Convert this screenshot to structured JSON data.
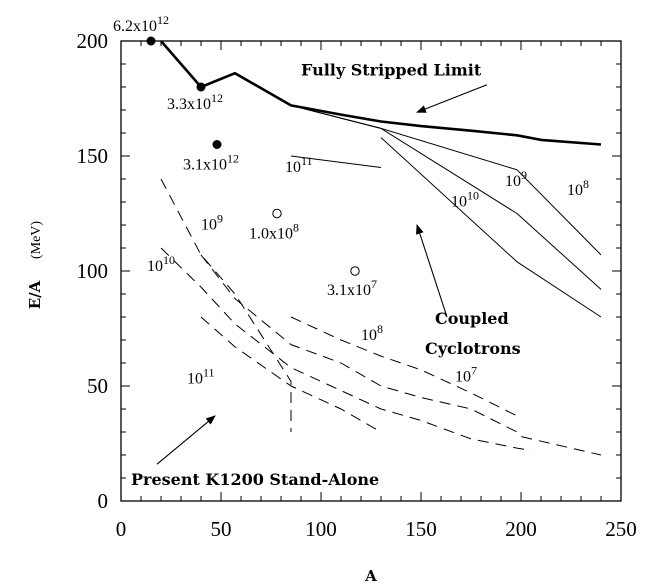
{
  "chart_data": {
    "type": "line",
    "xlabel": "A",
    "ylabel": "E/A",
    "yunit": "(MeV)",
    "xlim": [
      0,
      250
    ],
    "ylim": [
      0,
      200
    ],
    "xticks": [
      0,
      50,
      100,
      150,
      200,
      250
    ],
    "yticks": [
      0,
      50,
      100,
      150,
      200
    ],
    "grid": false,
    "series": [
      {
        "name": "Fully Stripped Limit",
        "style": "thick-solid",
        "points": [
          [
            20,
            200
          ],
          [
            40,
            180
          ],
          [
            57,
            186
          ],
          [
            85,
            172
          ],
          [
            110,
            168
          ],
          [
            130,
            165
          ],
          [
            150,
            163
          ],
          [
            175,
            161
          ],
          [
            198,
            159
          ],
          [
            210,
            157
          ],
          [
            240,
            155
          ]
        ]
      },
      {
        "name": "",
        "style": "solid",
        "points": [
          [
            85,
            172
          ],
          [
            130,
            162
          ],
          [
            198,
            144
          ],
          [
            240,
            107
          ]
        ]
      },
      {
        "name": "",
        "style": "solid",
        "points": [
          [
            85,
            172
          ],
          [
            130,
            162
          ],
          [
            198,
            125
          ],
          [
            240,
            92
          ]
        ]
      },
      {
        "name": "",
        "style": "solid",
        "points": [
          [
            130,
            158
          ],
          [
            198,
            104
          ],
          [
            240,
            80
          ]
        ]
      },
      {
        "name": "",
        "style": "solid",
        "points": [
          [
            85,
            150
          ],
          [
            130,
            145
          ]
        ]
      },
      {
        "name": "",
        "style": "dashed",
        "points": [
          [
            20,
            140
          ],
          [
            40,
            107
          ],
          [
            57,
            90
          ],
          [
            85,
            52
          ],
          [
            85,
            30
          ]
        ]
      },
      {
        "name": "",
        "style": "dashed",
        "points": [
          [
            20,
            110
          ],
          [
            40,
            93
          ],
          [
            57,
            77
          ],
          [
            85,
            58
          ],
          [
            110,
            48
          ],
          [
            130,
            40
          ],
          [
            150,
            35
          ],
          [
            175,
            27
          ],
          [
            198,
            23
          ],
          [
            205,
            22
          ]
        ]
      },
      {
        "name": "",
        "style": "dashed",
        "points": [
          [
            40,
            107
          ],
          [
            57,
            88
          ],
          [
            85,
            68
          ],
          [
            110,
            60
          ],
          [
            130,
            50
          ],
          [
            150,
            45
          ],
          [
            175,
            40
          ],
          [
            198,
            30
          ],
          [
            200,
            28
          ],
          [
            240,
            20
          ]
        ]
      },
      {
        "name": "",
        "style": "dashed",
        "points": [
          [
            40,
            80
          ],
          [
            57,
            67
          ],
          [
            85,
            50
          ],
          [
            110,
            40
          ],
          [
            130,
            30
          ]
        ]
      },
      {
        "name": "",
        "style": "dashed",
        "points": [
          [
            85,
            80
          ],
          [
            110,
            70
          ],
          [
            130,
            63
          ],
          [
            150,
            57
          ],
          [
            175,
            47
          ],
          [
            198,
            37
          ]
        ]
      }
    ],
    "filled_points": [
      {
        "x": 15,
        "y": 200,
        "label": "6.2x10",
        "exp": "12"
      },
      {
        "x": 40,
        "y": 180,
        "label": "3.3x10",
        "exp": "12"
      },
      {
        "x": 48,
        "y": 155,
        "label": "3.1x10",
        "exp": "12"
      }
    ],
    "open_points": [
      {
        "x": 78,
        "y": 125,
        "label": "1.0x10",
        "exp": "8"
      },
      {
        "x": 117,
        "y": 100,
        "label": "3.1x10",
        "exp": "7"
      }
    ],
    "line_labels": [
      {
        "x": 82,
        "y": 143,
        "base": "10",
        "exp": "11"
      },
      {
        "x": 165,
        "y": 128,
        "base": "10",
        "exp": "10"
      },
      {
        "x": 192,
        "y": 137,
        "base": "10",
        "exp": "9"
      },
      {
        "x": 223,
        "y": 133,
        "base": "10",
        "exp": "8"
      },
      {
        "x": 40,
        "y": 118,
        "base": "10",
        "exp": "9"
      },
      {
        "x": 13,
        "y": 100,
        "base": "10",
        "exp": "10"
      },
      {
        "x": 33,
        "y": 51,
        "base": "10",
        "exp": "11"
      },
      {
        "x": 120,
        "y": 70,
        "base": "10",
        "exp": "8"
      },
      {
        "x": 167,
        "y": 52,
        "base": "10",
        "exp": "7"
      }
    ],
    "annotations": [
      {
        "text": "Fully Stripped Limit",
        "x": 90,
        "y": 185,
        "arrow_to": [
          148,
          169
        ],
        "arrow_from": [
          183,
          181
        ]
      },
      {
        "text": "Coupled",
        "x": 157,
        "y": 77
      },
      {
        "text": "Cyclotrons",
        "x": 152,
        "y": 64,
        "arrow_to": [
          148,
          120
        ],
        "arrow_from": [
          163,
          80
        ]
      },
      {
        "text": "Present K1200 Stand-Alone",
        "x": 5,
        "y": 7,
        "arrow_to": [
          47,
          37
        ],
        "arrow_from": [
          18,
          16
        ]
      }
    ]
  }
}
